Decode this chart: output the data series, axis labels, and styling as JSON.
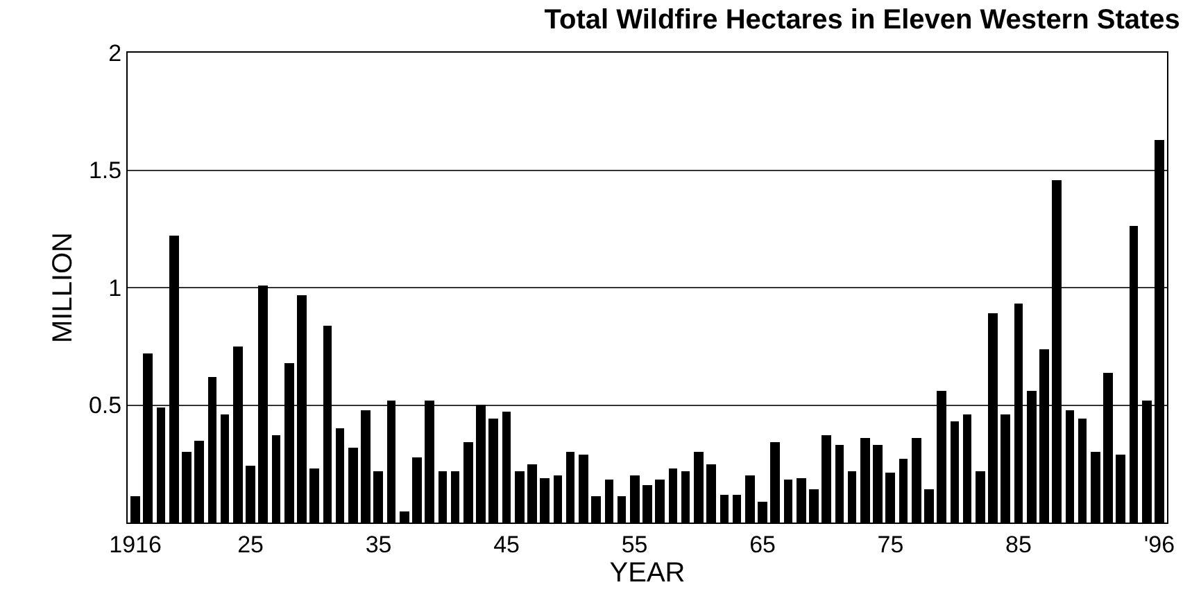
{
  "chart_data": {
    "type": "bar",
    "title": "Total Wildfire Hectares in Eleven Western States",
    "xlabel": "YEAR",
    "ylabel": "MILLION",
    "x": [
      1916,
      1917,
      1918,
      1919,
      1920,
      1921,
      1922,
      1923,
      1924,
      1925,
      1926,
      1927,
      1928,
      1929,
      1930,
      1931,
      1932,
      1933,
      1934,
      1935,
      1936,
      1937,
      1938,
      1939,
      1940,
      1941,
      1942,
      1943,
      1944,
      1945,
      1946,
      1947,
      1948,
      1949,
      1950,
      1951,
      1952,
      1953,
      1954,
      1955,
      1956,
      1957,
      1958,
      1959,
      1960,
      1961,
      1962,
      1963,
      1964,
      1965,
      1966,
      1967,
      1968,
      1969,
      1970,
      1971,
      1972,
      1973,
      1974,
      1975,
      1976,
      1977,
      1978,
      1979,
      1980,
      1981,
      1982,
      1983,
      1984,
      1985,
      1986,
      1987,
      1988,
      1989,
      1990,
      1991,
      1992,
      1993,
      1994,
      1995,
      1996
    ],
    "values": [
      0.11,
      0.72,
      0.49,
      1.22,
      0.3,
      0.35,
      0.62,
      0.46,
      0.75,
      0.24,
      1.01,
      0.37,
      0.68,
      0.97,
      0.23,
      0.84,
      0.4,
      0.32,
      0.48,
      0.22,
      0.52,
      0.05,
      0.28,
      0.52,
      0.22,
      0.22,
      0.34,
      0.5,
      0.44,
      0.47,
      0.22,
      0.25,
      0.19,
      0.2,
      0.3,
      0.29,
      0.11,
      0.18,
      0.11,
      0.2,
      0.16,
      0.18,
      0.23,
      0.22,
      0.3,
      0.25,
      0.12,
      0.12,
      0.2,
      0.09,
      0.34,
      0.18,
      0.19,
      0.14,
      0.37,
      0.33,
      0.22,
      0.36,
      0.33,
      0.21,
      0.27,
      0.36,
      0.14,
      0.56,
      0.43,
      0.46,
      0.22,
      0.89,
      0.46,
      0.93,
      0.56,
      0.74,
      1.46,
      0.48,
      0.44,
      0.3,
      0.64,
      0.29,
      1.26,
      0.52,
      1.63
    ],
    "color": "#000000",
    "xlim": [
      1915.4,
      1996.6
    ],
    "xticks": [
      1916,
      {
        "value": 1925,
        "label": "25"
      },
      {
        "value": 1935,
        "label": "35"
      },
      {
        "value": 1945,
        "label": "45"
      },
      {
        "value": 1955,
        "label": "55"
      },
      {
        "value": 1965,
        "label": "65"
      },
      {
        "value": 1975,
        "label": "75"
      },
      {
        "value": 1985,
        "label": "85"
      },
      {
        "value": 1996,
        "label": "'96"
      }
    ],
    "ylim": [
      0,
      2
    ],
    "yticks": [
      {
        "value": 0.5,
        "label": "0.5"
      },
      1,
      1.5,
      2
    ],
    "grid": "y"
  }
}
